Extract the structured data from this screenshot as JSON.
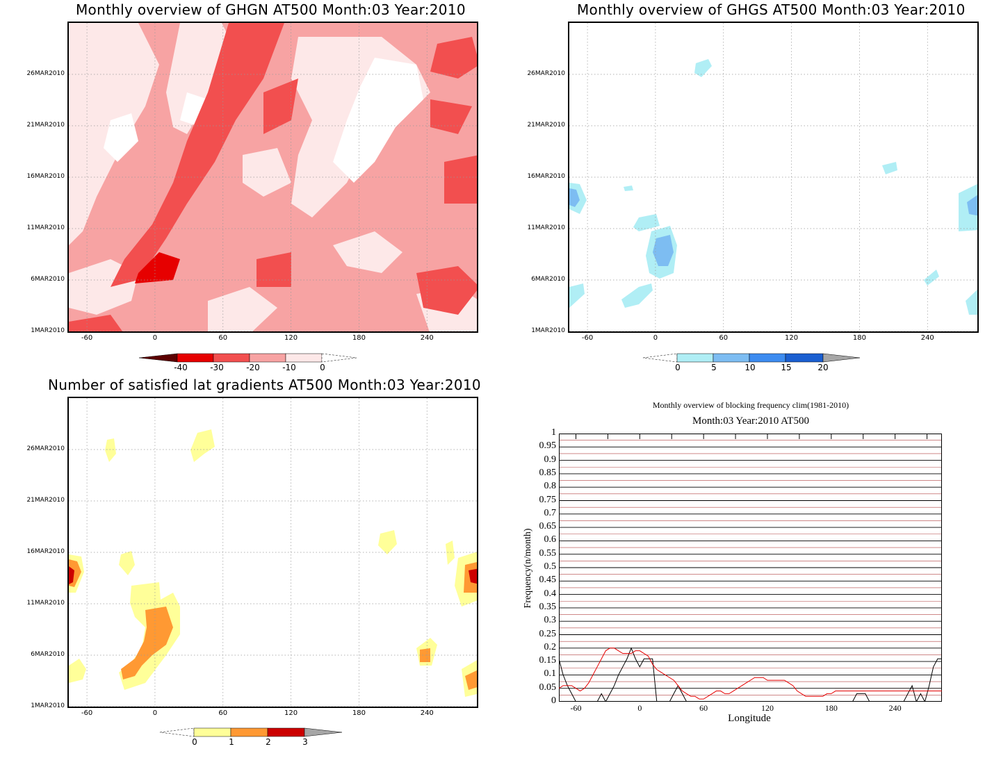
{
  "chart_data": [
    {
      "type": "heatmap",
      "title": "Monthly overview of GHGN AT500 Month:03 Year:2010",
      "xlabel": "",
      "ylabel": "",
      "xlim": [
        -76,
        284
      ],
      "x_ticks": [
        "-60",
        "0",
        "60",
        "120",
        "180",
        "240"
      ],
      "x_tick_values": [
        -60,
        0,
        60,
        120,
        180,
        240
      ],
      "y_ticks": [
        "1MAR2010",
        "6MAR2010",
        "11MAR2010",
        "16MAR2010",
        "21MAR2010",
        "26MAR2010"
      ],
      "y_tick_values": [
        1,
        6,
        11,
        16,
        21,
        26
      ],
      "ylim": [
        1,
        31
      ],
      "grid": true,
      "colorbar": {
        "labels": [
          "-40",
          "-30",
          "-20",
          "-10",
          "0"
        ],
        "colors": [
          "#5c0000",
          "#e60000",
          "#f24f4f",
          "#f7a3a3",
          "#fde8e8"
        ]
      },
      "description_regions": [
        {
          "level": "0 to -10",
          "color": "#fde8e8"
        },
        {
          "level": "-10 to -20",
          "color": "#f7a3a3"
        },
        {
          "level": "-20 to -30",
          "color": "#f24f4f"
        },
        {
          "level": "-30 to -40",
          "color": "#e60000"
        }
      ]
    },
    {
      "type": "heatmap",
      "title": "Monthly overview of GHGS AT500 Month:03 Year:2010",
      "xlim": [
        -76,
        284
      ],
      "x_ticks": [
        "-60",
        "0",
        "60",
        "120",
        "180",
        "240"
      ],
      "x_tick_values": [
        -60,
        0,
        60,
        120,
        180,
        240
      ],
      "y_ticks": [
        "1MAR2010",
        "6MAR2010",
        "11MAR2010",
        "16MAR2010",
        "21MAR2010",
        "26MAR2010"
      ],
      "y_tick_values": [
        1,
        6,
        11,
        16,
        21,
        26
      ],
      "ylim": [
        1,
        31
      ],
      "grid": true,
      "colorbar": {
        "labels": [
          "0",
          "5",
          "10",
          "15",
          "20"
        ],
        "colors": [
          "#b0eef5",
          "#7dbdf2",
          "#3d8cf0",
          "#1a5fd1",
          "#a6a6a6"
        ]
      }
    },
    {
      "type": "heatmap",
      "title": "Number of satisfied lat gradients AT500 Month:03 Year:2010",
      "xlim": [
        -76,
        284
      ],
      "x_ticks": [
        "-60",
        "0",
        "60",
        "120",
        "180",
        "240"
      ],
      "x_tick_values": [
        -60,
        0,
        60,
        120,
        180,
        240
      ],
      "y_ticks": [
        "1MAR2010",
        "6MAR2010",
        "11MAR2010",
        "16MAR2010",
        "21MAR2010",
        "26MAR2010"
      ],
      "y_tick_values": [
        1,
        6,
        11,
        16,
        21,
        26
      ],
      "ylim": [
        1,
        31
      ],
      "grid": true,
      "colorbar": {
        "labels": [
          "0",
          "1",
          "2",
          "3"
        ],
        "colors": [
          "#ffff99",
          "#ff9933",
          "#cc0000",
          "#a6a6a6"
        ]
      }
    },
    {
      "type": "line",
      "title": "Monthly overview of blocking frequency clim(1981-2010)",
      "subtitle": "Month:03 Year:2010  AT500",
      "xlabel": "Longitude",
      "ylabel": "Frequency(n/month)",
      "xlim": [
        -76,
        284
      ],
      "ylim": [
        0,
        1
      ],
      "x_ticks": [
        "-60",
        "0",
        "60",
        "120",
        "180",
        "240"
      ],
      "x_tick_values": [
        -60,
        0,
        60,
        120,
        180,
        240
      ],
      "y_ticks": [
        "0",
        "0.05",
        "0.1",
        "0.15",
        "0.2",
        "0.25",
        "0.3",
        "0.35",
        "0.4",
        "0.45",
        "0.5",
        "0.55",
        "0.6",
        "0.65",
        "0.7",
        "0.75",
        "0.8",
        "0.85",
        "0.9",
        "0.95",
        "1"
      ],
      "series": [
        {
          "color": "#000000",
          "x": [
            -76,
            -72,
            -68,
            -64,
            -60,
            -56,
            -52,
            -48,
            -44,
            -40,
            -36,
            -32,
            -28,
            -24,
            -20,
            -16,
            -12,
            -8,
            -4,
            0,
            4,
            8,
            12,
            16,
            20,
            24,
            28,
            32,
            36,
            40,
            44,
            48,
            52,
            56,
            60,
            64,
            68,
            72,
            76,
            80,
            84,
            88,
            92,
            96,
            100,
            104,
            108,
            112,
            116,
            120,
            124,
            128,
            132,
            136,
            140,
            144,
            148,
            152,
            156,
            160,
            164,
            168,
            172,
            176,
            180,
            184,
            188,
            192,
            196,
            200,
            204,
            208,
            212,
            216,
            220,
            224,
            228,
            232,
            236,
            240,
            244,
            248,
            252,
            256,
            260,
            264,
            268,
            272,
            276,
            280,
            284
          ],
          "values": [
            0.16,
            0.1,
            0.06,
            0.03,
            0,
            0,
            0,
            0,
            0,
            0,
            0.03,
            0,
            0.03,
            0.06,
            0.1,
            0.13,
            0.16,
            0.2,
            0.16,
            0.13,
            0.16,
            0.16,
            0.16,
            0,
            0,
            0,
            0,
            0.03,
            0.06,
            0.03,
            0,
            0,
            0,
            0,
            0,
            0,
            0,
            0,
            0,
            0,
            0,
            0,
            0,
            0,
            0,
            0,
            0,
            0,
            0,
            0,
            0,
            0,
            0,
            0,
            0,
            0,
            0,
            0,
            0,
            0,
            0,
            0,
            0,
            0,
            0,
            0,
            0,
            0,
            0,
            0,
            0.03,
            0.03,
            0.03,
            0,
            0,
            0,
            0,
            0,
            0,
            0,
            0,
            0,
            0.03,
            0.06,
            0,
            0.03,
            0,
            0.06,
            0.13,
            0.16,
            0.16
          ]
        },
        {
          "color": "#e60000",
          "x": [
            -76,
            -72,
            -68,
            -64,
            -60,
            -56,
            -52,
            -48,
            -44,
            -40,
            -36,
            -32,
            -28,
            -24,
            -20,
            -16,
            -12,
            -8,
            -4,
            0,
            4,
            8,
            12,
            16,
            20,
            24,
            28,
            32,
            36,
            40,
            44,
            48,
            52,
            56,
            60,
            64,
            68,
            72,
            76,
            80,
            84,
            88,
            92,
            96,
            100,
            104,
            108,
            112,
            116,
            120,
            124,
            128,
            132,
            136,
            140,
            144,
            148,
            152,
            156,
            160,
            164,
            168,
            172,
            176,
            180,
            184,
            188,
            192,
            196,
            200,
            204,
            208,
            212,
            216,
            220,
            224,
            228,
            232,
            236,
            240,
            244,
            248,
            252,
            256,
            260,
            264,
            268,
            272,
            276,
            280,
            284
          ],
          "values": [
            0.05,
            0.06,
            0.06,
            0.06,
            0.05,
            0.04,
            0.05,
            0.07,
            0.1,
            0.13,
            0.16,
            0.19,
            0.2,
            0.2,
            0.19,
            0.18,
            0.18,
            0.18,
            0.19,
            0.19,
            0.18,
            0.17,
            0.14,
            0.12,
            0.11,
            0.1,
            0.09,
            0.08,
            0.06,
            0.04,
            0.03,
            0.02,
            0.02,
            0.01,
            0.01,
            0.02,
            0.03,
            0.04,
            0.04,
            0.03,
            0.03,
            0.04,
            0.05,
            0.06,
            0.07,
            0.08,
            0.09,
            0.09,
            0.09,
            0.08,
            0.08,
            0.08,
            0.08,
            0.08,
            0.07,
            0.06,
            0.04,
            0.03,
            0.02,
            0.02,
            0.02,
            0.02,
            0.02,
            0.03,
            0.03,
            0.04,
            0.04,
            0.04,
            0.04,
            0.04,
            0.04,
            0.04,
            0.04,
            0.04,
            0.04,
            0.04,
            0.04,
            0.04,
            0.04,
            0.04,
            0.04,
            0.04,
            0.04,
            0.04,
            0.04,
            0.04,
            0.04,
            0.04,
            0.04,
            0.04,
            0.04
          ]
        }
      ]
    }
  ]
}
